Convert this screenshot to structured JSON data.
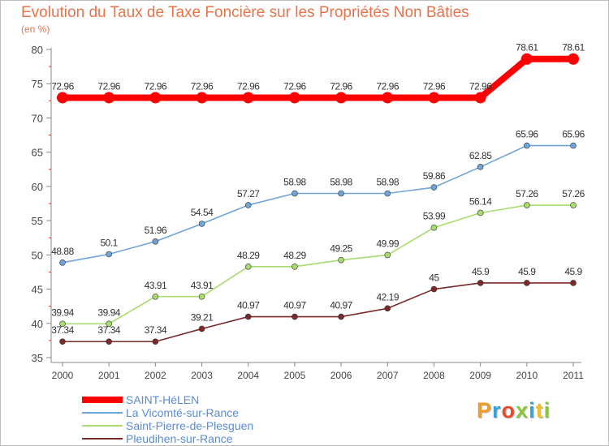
{
  "header": {
    "title": "Evolution du Taux de Taxe Foncière sur les Propriétés Non Bâties",
    "unit": "(en %)"
  },
  "logo": {
    "text": "Proxiti"
  },
  "chart_data": {
    "type": "line",
    "x": [
      "2000",
      "2001",
      "2002",
      "2003",
      "2004",
      "2005",
      "2006",
      "2007",
      "2008",
      "2009",
      "2010",
      "2011"
    ],
    "ylim": [
      35,
      80
    ],
    "yticks": [
      35,
      40,
      45,
      50,
      55,
      60,
      65,
      70,
      75,
      80
    ],
    "grid": false,
    "legend_position": "bottom-left",
    "series": [
      {
        "name": "SAINT-HéLEN",
        "color": "#ff0000",
        "values": [
          72.96,
          72.96,
          72.96,
          72.96,
          72.96,
          72.96,
          72.96,
          72.96,
          72.96,
          72.96,
          78.61,
          78.61
        ],
        "labels": [
          "72.96",
          "72.96",
          "72.96",
          "72.96",
          "72.96",
          "72.96",
          "72.96",
          "72.96",
          "72.96",
          "72.96",
          "78.61",
          "78.61"
        ]
      },
      {
        "name": "La Vicomté-sur-Rance",
        "color": "#6fa4d8",
        "values": [
          48.88,
          50.1,
          51.96,
          54.54,
          57.27,
          58.98,
          58.98,
          58.98,
          59.86,
          62.85,
          65.96,
          65.96
        ],
        "labels": [
          "48.88",
          "50.1",
          "51.96",
          "54.54",
          "57.27",
          "58.98",
          "58.98",
          "58.98",
          "59.86",
          "62.85",
          "65.96",
          "65.96"
        ]
      },
      {
        "name": "Saint-Pierre-de-Plesguen",
        "color": "#a8dc6e",
        "values": [
          39.94,
          39.94,
          43.91,
          43.91,
          48.29,
          48.29,
          49.25,
          49.99,
          53.99,
          56.14,
          57.26,
          57.26
        ],
        "labels": [
          "39.94",
          "39.94",
          "43.91",
          "43.91",
          "48.29",
          "48.29",
          "49.25",
          "49.99",
          "53.99",
          "56.14",
          "57.26",
          "57.26"
        ]
      },
      {
        "name": "Pleudihen-sur-Rance",
        "color": "#7a2a2a",
        "values": [
          37.34,
          37.34,
          37.34,
          39.21,
          40.97,
          40.97,
          40.97,
          42.19,
          45,
          45.9,
          45.9,
          45.9
        ],
        "labels": [
          "37.34",
          "37.34",
          "37.34",
          "39.21",
          "40.97",
          "40.97",
          "40.97",
          "42.19",
          "45",
          "45.9",
          "45.9",
          "45.9"
        ]
      }
    ]
  }
}
